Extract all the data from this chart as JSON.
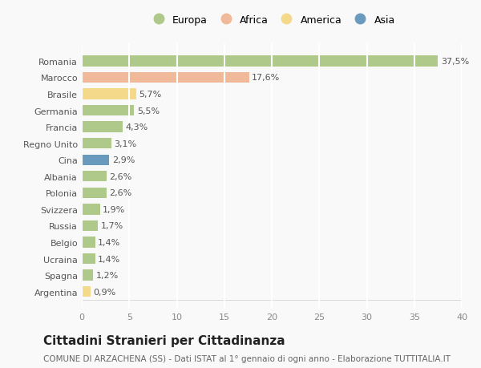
{
  "countries": [
    "Romania",
    "Marocco",
    "Brasile",
    "Germania",
    "Francia",
    "Regno Unito",
    "Cina",
    "Albania",
    "Polonia",
    "Svizzera",
    "Russia",
    "Belgio",
    "Ucraina",
    "Spagna",
    "Argentina"
  ],
  "values": [
    37.5,
    17.6,
    5.7,
    5.5,
    4.3,
    3.1,
    2.9,
    2.6,
    2.6,
    1.9,
    1.7,
    1.4,
    1.4,
    1.2,
    0.9
  ],
  "labels": [
    "37,5%",
    "17,6%",
    "5,7%",
    "5,5%",
    "4,3%",
    "3,1%",
    "2,9%",
    "2,6%",
    "2,6%",
    "1,9%",
    "1,7%",
    "1,4%",
    "1,4%",
    "1,2%",
    "0,9%"
  ],
  "continents": [
    "Europa",
    "Africa",
    "America",
    "Europa",
    "Europa",
    "Europa",
    "Asia",
    "Europa",
    "Europa",
    "Europa",
    "Europa",
    "Europa",
    "Europa",
    "Europa",
    "America"
  ],
  "colors": {
    "Europa": "#aec98a",
    "Africa": "#f0b99a",
    "America": "#f5d98a",
    "Asia": "#6b9abf"
  },
  "legend_order": [
    "Europa",
    "Africa",
    "America",
    "Asia"
  ],
  "legend_colors": {
    "Europa": "#aec98a",
    "Africa": "#f0b99a",
    "America": "#f5d98a",
    "Asia": "#6b9abf"
  },
  "title": "Cittadini Stranieri per Cittadinanza",
  "subtitle": "COMUNE DI ARZACHENA (SS) - Dati ISTAT al 1° gennaio di ogni anno - Elaborazione TUTTITALIA.IT",
  "xlim": [
    0,
    40
  ],
  "xticks": [
    0,
    5,
    10,
    15,
    20,
    25,
    30,
    35,
    40
  ],
  "background_color": "#f9f9f9",
  "grid_color": "#ffffff",
  "bar_height": 0.65,
  "label_fontsize": 8,
  "tick_fontsize": 8,
  "title_fontsize": 11,
  "subtitle_fontsize": 7.5
}
